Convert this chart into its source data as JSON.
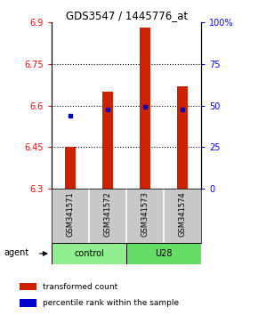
{
  "title": "GDS3547 / 1445776_at",
  "samples": [
    "GSM341571",
    "GSM341572",
    "GSM341573",
    "GSM341574"
  ],
  "bar_values": [
    6.45,
    6.65,
    6.88,
    6.67
  ],
  "bar_base": 6.3,
  "percentile_values": [
    6.565,
    6.585,
    6.597,
    6.585
  ],
  "ylim_left": [
    6.3,
    6.9
  ],
  "ylim_right": [
    0,
    100
  ],
  "yticks_left": [
    6.3,
    6.45,
    6.6,
    6.75,
    6.9
  ],
  "ytick_labels_left": [
    "6.3",
    "6.45",
    "6.6",
    "6.75",
    "6.9"
  ],
  "yticks_right": [
    0,
    25,
    50,
    75,
    100
  ],
  "ytick_labels_right": [
    "0",
    "25",
    "50",
    "75",
    "100%"
  ],
  "bar_color": "#cc2200",
  "percentile_color": "#0000cc",
  "grid_yticks": [
    6.45,
    6.6,
    6.75
  ],
  "bar_width": 0.3,
  "control_color": "#90EE90",
  "u28_color": "#66DD66",
  "legend_transformed": "transformed count",
  "legend_percentile": "percentile rank within the sample",
  "sample_panel_color": "#c8c8c8",
  "agent_label": "agent"
}
